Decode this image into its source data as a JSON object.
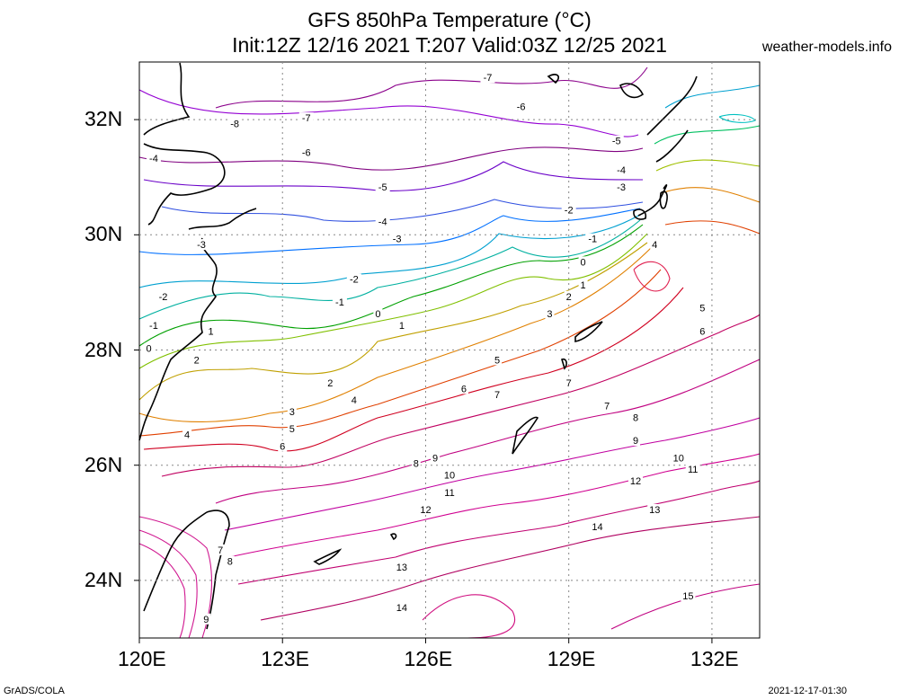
{
  "title_line1": "GFS 850hPa Temperature (°C)",
  "title_line2": "Init:12Z 12/16 2021 T:207 Valid:03Z 12/25 2021",
  "site": "weather-models.info",
  "footer_left": "GrADS/COLA",
  "footer_right": "2021-12-17-01:30",
  "map": {
    "lon_ticks": [
      "120E",
      "123E",
      "126E",
      "129E",
      "132E"
    ],
    "lat_ticks": [
      "32N",
      "30N",
      "28N",
      "26N",
      "24N"
    ],
    "lon_values": [
      120,
      123,
      126,
      129,
      132
    ],
    "lat_values": [
      32,
      30,
      28,
      26,
      24
    ],
    "lon_range": [
      120,
      133
    ],
    "lat_range": [
      23,
      33
    ],
    "grid": true,
    "contour_labels": [
      {
        "text": "-8",
        "lon": 122.0,
        "lat": 31.9
      },
      {
        "text": "-7",
        "lon": 123.5,
        "lat": 32.0
      },
      {
        "text": "-7",
        "lon": 127.3,
        "lat": 32.7
      },
      {
        "text": "-6",
        "lon": 128.0,
        "lat": 32.2
      },
      {
        "text": "-6",
        "lon": 123.5,
        "lat": 31.4
      },
      {
        "text": "-5",
        "lon": 130.0,
        "lat": 31.6
      },
      {
        "text": "-5",
        "lon": 125.1,
        "lat": 30.8
      },
      {
        "text": "-4",
        "lon": 125.1,
        "lat": 30.2
      },
      {
        "text": "-4",
        "lon": 130.1,
        "lat": 31.1
      },
      {
        "text": "-4",
        "lon": 120.3,
        "lat": 31.3
      },
      {
        "text": "-3",
        "lon": 125.4,
        "lat": 29.9
      },
      {
        "text": "-3",
        "lon": 121.3,
        "lat": 29.8
      },
      {
        "text": "-3",
        "lon": 130.1,
        "lat": 30.8
      },
      {
        "text": "-2",
        "lon": 129.0,
        "lat": 30.4
      },
      {
        "text": "-2",
        "lon": 124.5,
        "lat": 29.2
      },
      {
        "text": "-2",
        "lon": 120.5,
        "lat": 28.9
      },
      {
        "text": "-1",
        "lon": 129.5,
        "lat": 29.9
      },
      {
        "text": "-1",
        "lon": 124.2,
        "lat": 28.8
      },
      {
        "text": "-1",
        "lon": 120.3,
        "lat": 28.4
      },
      {
        "text": "0",
        "lon": 129.3,
        "lat": 29.5
      },
      {
        "text": "0",
        "lon": 125.0,
        "lat": 28.6
      },
      {
        "text": "0",
        "lon": 120.2,
        "lat": 28.0
      },
      {
        "text": "1",
        "lon": 129.3,
        "lat": 29.1
      },
      {
        "text": "1",
        "lon": 125.5,
        "lat": 28.4
      },
      {
        "text": "1",
        "lon": 121.5,
        "lat": 28.3
      },
      {
        "text": "2",
        "lon": 129.0,
        "lat": 28.9
      },
      {
        "text": "2",
        "lon": 124.0,
        "lat": 27.4
      },
      {
        "text": "2",
        "lon": 121.2,
        "lat": 27.8
      },
      {
        "text": "3",
        "lon": 128.6,
        "lat": 28.6
      },
      {
        "text": "3",
        "lon": 123.2,
        "lat": 26.9
      },
      {
        "text": "4",
        "lon": 130.8,
        "lat": 29.8
      },
      {
        "text": "4",
        "lon": 124.5,
        "lat": 27.1
      },
      {
        "text": "4",
        "lon": 121.0,
        "lat": 26.5
      },
      {
        "text": "5",
        "lon": 131.8,
        "lat": 28.7
      },
      {
        "text": "5",
        "lon": 127.5,
        "lat": 27.8
      },
      {
        "text": "5",
        "lon": 123.2,
        "lat": 26.6
      },
      {
        "text": "6",
        "lon": 131.8,
        "lat": 28.3
      },
      {
        "text": "6",
        "lon": 126.8,
        "lat": 27.3
      },
      {
        "text": "6",
        "lon": 123.0,
        "lat": 26.3
      },
      {
        "text": "7",
        "lon": 129.0,
        "lat": 27.4
      },
      {
        "text": "7",
        "lon": 127.5,
        "lat": 27.2
      },
      {
        "text": "7",
        "lon": 129.8,
        "lat": 27.0
      },
      {
        "text": "7",
        "lon": 121.7,
        "lat": 24.5
      },
      {
        "text": "8",
        "lon": 130.4,
        "lat": 26.8
      },
      {
        "text": "8",
        "lon": 125.8,
        "lat": 26.0
      },
      {
        "text": "8",
        "lon": 121.9,
        "lat": 24.3
      },
      {
        "text": "9",
        "lon": 130.4,
        "lat": 26.4
      },
      {
        "text": "9",
        "lon": 126.2,
        "lat": 26.1
      },
      {
        "text": "9",
        "lon": 121.4,
        "lat": 23.3
      },
      {
        "text": "10",
        "lon": 131.3,
        "lat": 26.1
      },
      {
        "text": "10",
        "lon": 126.5,
        "lat": 25.8
      },
      {
        "text": "11",
        "lon": 131.6,
        "lat": 25.9
      },
      {
        "text": "11",
        "lon": 126.5,
        "lat": 25.5
      },
      {
        "text": "12",
        "lon": 130.4,
        "lat": 25.7
      },
      {
        "text": "12",
        "lon": 126.0,
        "lat": 25.2
      },
      {
        "text": "13",
        "lon": 130.8,
        "lat": 25.2
      },
      {
        "text": "13",
        "lon": 125.5,
        "lat": 24.2
      },
      {
        "text": "14",
        "lon": 129.6,
        "lat": 24.9
      },
      {
        "text": "14",
        "lon": 125.5,
        "lat": 23.5
      },
      {
        "text": "15",
        "lon": 131.5,
        "lat": 23.7
      }
    ]
  }
}
